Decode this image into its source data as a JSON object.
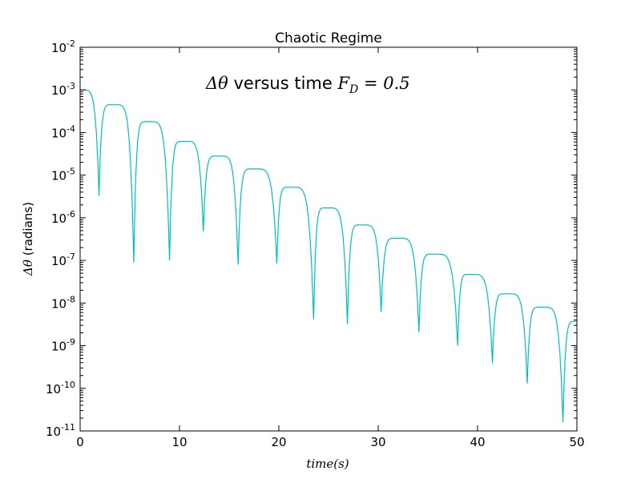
{
  "chart_data": {
    "type": "line",
    "title": "Chaotic Regime",
    "annotation": {
      "prefix": "Δθ",
      "text": " versus time ",
      "math": "F",
      "math_sub": "D",
      "math_rest": " = 0.5"
    },
    "xlabel": "time(s)",
    "ylabel_symbol": "Δθ",
    "ylabel_text": " (radians)",
    "xlim": [
      0,
      50
    ],
    "ylim": [
      1e-11,
      0.01
    ],
    "yscale": "log",
    "grid": false,
    "xticks": [
      0,
      10,
      20,
      30,
      40,
      50
    ],
    "yticks": [
      {
        "value": 1e-11,
        "base": "10",
        "exp": "-11"
      },
      {
        "value": 1e-10,
        "base": "10",
        "exp": "-10"
      },
      {
        "value": 1e-09,
        "base": "10",
        "exp": "-9"
      },
      {
        "value": 1e-08,
        "base": "10",
        "exp": "-8"
      },
      {
        "value": 1e-07,
        "base": "10",
        "exp": "-7"
      },
      {
        "value": 1e-06,
        "base": "10",
        "exp": "-6"
      },
      {
        "value": 1e-05,
        "base": "10",
        "exp": "-5"
      },
      {
        "value": 0.0001,
        "base": "10",
        "exp": "-4"
      },
      {
        "value": 0.001,
        "base": "10",
        "exp": "-3"
      },
      {
        "value": 0.01,
        "base": "10",
        "exp": "-2"
      }
    ],
    "series": [
      {
        "color": "#00bfbf",
        "start": {
          "x": 0,
          "y": 0.001
        },
        "peaks": [
          {
            "x": 3.3,
            "y": 0.00045
          },
          {
            "x": 6.8,
            "y": 0.00018
          },
          {
            "x": 10.4,
            "y": 6.2e-05
          },
          {
            "x": 13.9,
            "y": 2.8e-05
          },
          {
            "x": 17.4,
            "y": 1.4e-05
          },
          {
            "x": 21.1,
            "y": 5.2e-06
          },
          {
            "x": 24.8,
            "y": 1.7e-06
          },
          {
            "x": 28.3,
            "y": 6.8e-07
          },
          {
            "x": 31.9,
            "y": 3.3e-07
          },
          {
            "x": 35.5,
            "y": 1.4e-07
          },
          {
            "x": 39.2,
            "y": 4.7e-08
          },
          {
            "x": 42.9,
            "y": 1.65e-08
          },
          {
            "x": 46.4,
            "y": 8e-09
          },
          {
            "x": 50.0,
            "y": 3.7e-09
          }
        ],
        "dips": [
          {
            "x": 1.9,
            "y": 3.3e-06
          },
          {
            "x": 5.4,
            "y": 9e-08
          },
          {
            "x": 9.0,
            "y": 1e-07
          },
          {
            "x": 12.4,
            "y": 4.8e-07
          },
          {
            "x": 15.9,
            "y": 8e-08
          },
          {
            "x": 19.8,
            "y": 8.5e-08
          },
          {
            "x": 23.5,
            "y": 4.2e-09
          },
          {
            "x": 26.9,
            "y": 3.2e-09
          },
          {
            "x": 30.3,
            "y": 6.2e-09
          },
          {
            "x": 34.1,
            "y": 2.1e-09
          },
          {
            "x": 38.0,
            "y": 1e-09
          },
          {
            "x": 41.5,
            "y": 3.9e-10
          },
          {
            "x": 45.0,
            "y": 1.3e-10
          },
          {
            "x": 48.6,
            "y": 1.6e-11
          }
        ]
      }
    ]
  }
}
